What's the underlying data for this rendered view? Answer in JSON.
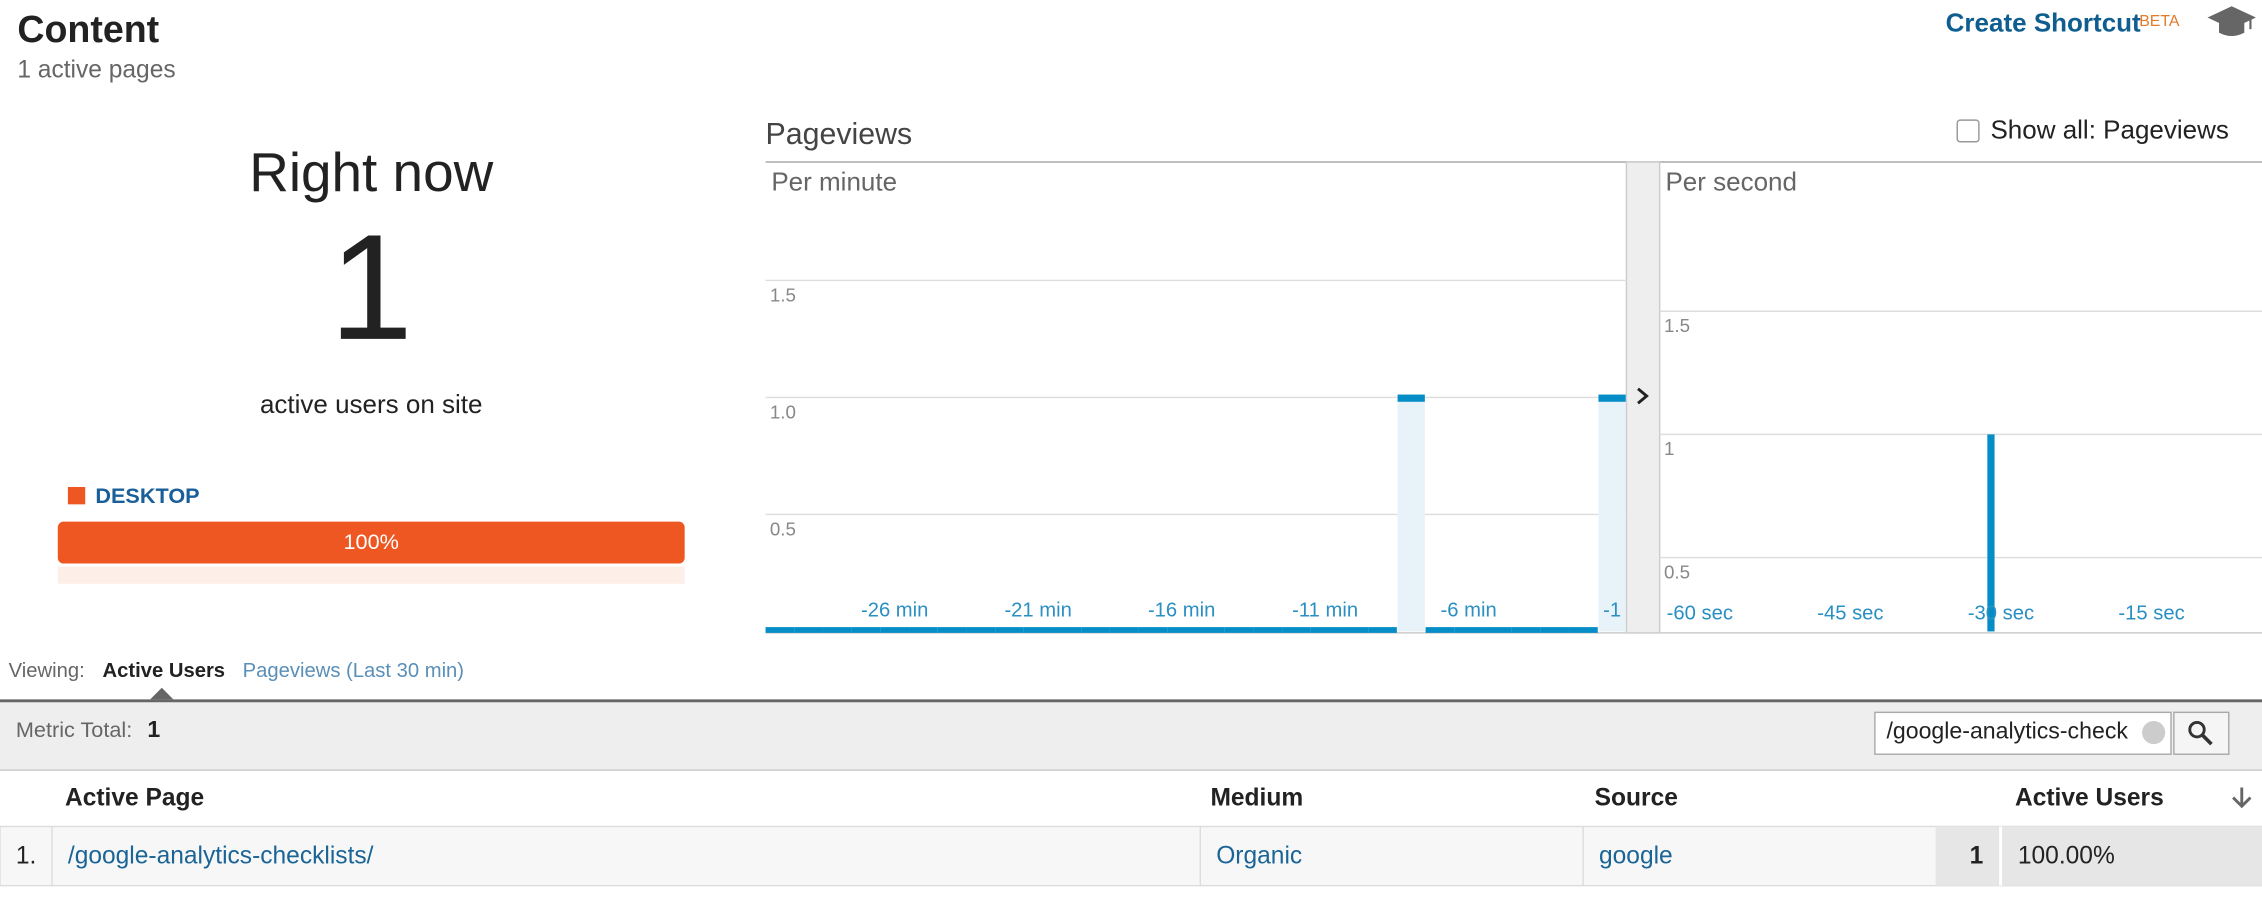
{
  "header": {
    "title": "Content",
    "subtitle": "1 active pages",
    "shortcut": "Create Shortcut",
    "beta": "BETA"
  },
  "right_now": {
    "title": "Right now",
    "value": 1,
    "caption": "active users on site",
    "device": "DESKTOP",
    "device_share": 100,
    "device_share_label": "100%"
  },
  "charts": {
    "title": "Pageviews",
    "show_all": "Show all: Pageviews"
  },
  "chart_data": [
    {
      "type": "bar",
      "title": "Per minute",
      "x": [
        -30,
        -29,
        -28,
        -27,
        -26,
        -25,
        -24,
        -23,
        -22,
        -21,
        -20,
        -19,
        -18,
        -17,
        -16,
        -15,
        -14,
        -13,
        -12,
        -11,
        -10,
        -9,
        -8,
        -7,
        -6,
        -5,
        -4,
        -3,
        -2,
        -1
      ],
      "values": [
        0,
        0,
        0,
        0,
        0,
        0,
        0,
        0,
        0,
        0,
        0,
        0,
        0,
        0,
        0,
        0,
        0,
        0,
        0,
        0,
        0,
        0,
        1,
        0,
        0,
        0,
        0,
        0,
        0,
        1
      ],
      "color": "#058dc7",
      "xlim": [
        -30.5,
        -0.5
      ],
      "xticks": [
        {
          "value": -26,
          "label": "-26 min"
        },
        {
          "value": -21,
          "label": "-21 min"
        },
        {
          "value": -16,
          "label": "-16 min"
        },
        {
          "value": -11,
          "label": "-11 min"
        },
        {
          "value": -6,
          "label": "-6 min"
        },
        {
          "value": -1,
          "label": "-1"
        }
      ],
      "ylim": [
        0,
        2
      ],
      "yticks": [
        0.5,
        {
          "value": 1,
          "label": "1.0"
        },
        1.5
      ],
      "grid": true
    },
    {
      "type": "bar",
      "title": "Per second",
      "x": [
        -31
      ],
      "values": [
        1
      ],
      "color": "#058dc7",
      "xlim": [
        -64,
        -4
      ],
      "xticks": [
        {
          "value": -60,
          "label": "-60 sec"
        },
        {
          "value": -45,
          "label": "-45 sec"
        },
        {
          "value": -30,
          "label": "-30 sec"
        },
        {
          "value": -15,
          "label": "-15 sec"
        }
      ],
      "ylim": [
        0.2,
        2.1
      ],
      "yticks": [
        0.5,
        1,
        1.5
      ],
      "grid": true
    }
  ],
  "viewing": {
    "label": "Viewing:",
    "tabs": [
      "Active Users",
      "Pageviews (Last 30 min)"
    ]
  },
  "table": {
    "metric_label": "Metric Total:",
    "metric_total": 1,
    "search": "/google-analytics-check",
    "columns": [
      "Active Page",
      "Medium",
      "Source",
      "Active Users"
    ],
    "rows": [
      [
        "1.",
        "/google-analytics-checklists/",
        "Organic",
        "google",
        1,
        "100.00%"
      ]
    ]
  }
}
